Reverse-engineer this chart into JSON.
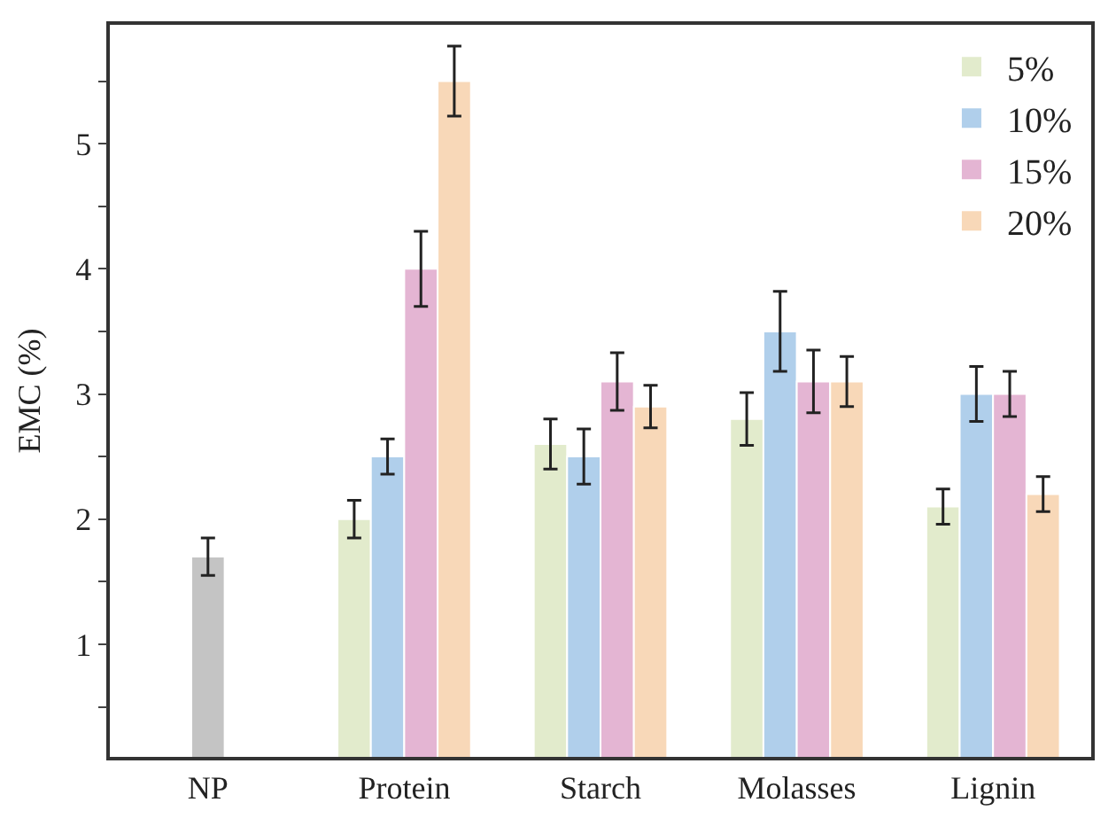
{
  "chart_data": {
    "type": "bar",
    "ylabel": "EMC (%)",
    "categories": [
      "NP",
      "Protein",
      "Starch",
      "Molasses",
      "Lignin"
    ],
    "series": [
      {
        "color": "#c4c4c4",
        "values": [
          1.7,
          null,
          null,
          null,
          null
        ],
        "errors": [
          0.15,
          null,
          null,
          null,
          null
        ]
      },
      {
        "name": "5%",
        "color": "#e2ebcc",
        "values": [
          null,
          2.0,
          2.6,
          2.8,
          2.1
        ],
        "errors": [
          null,
          0.15,
          0.2,
          0.21,
          0.14
        ]
      },
      {
        "name": "10%",
        "color": "#b0cfeb",
        "values": [
          null,
          2.5,
          2.5,
          3.5,
          3.0
        ],
        "errors": [
          null,
          0.14,
          0.22,
          0.32,
          0.22
        ]
      },
      {
        "name": "15%",
        "color": "#e4b5d3",
        "values": [
          null,
          4.0,
          3.1,
          3.1,
          3.0
        ],
        "errors": [
          null,
          0.3,
          0.23,
          0.25,
          0.18
        ]
      },
      {
        "name": "20%",
        "color": "#f8d8b8",
        "values": [
          null,
          5.5,
          2.9,
          3.1,
          2.2
        ],
        "errors": [
          null,
          0.28,
          0.17,
          0.2,
          0.14
        ]
      }
    ],
    "ylim": [
      0.1,
      5.95
    ],
    "yticks": [
      {
        "value": 0.5,
        "label": null
      },
      1,
      {
        "value": 1.5,
        "label": null
      },
      2,
      {
        "value": 2.5,
        "label": null
      },
      3,
      {
        "value": 3.5,
        "label": null
      },
      4,
      {
        "value": 4.5,
        "label": null
      },
      5,
      {
        "value": 5.5,
        "label": null
      }
    ],
    "legend": "top right"
  }
}
